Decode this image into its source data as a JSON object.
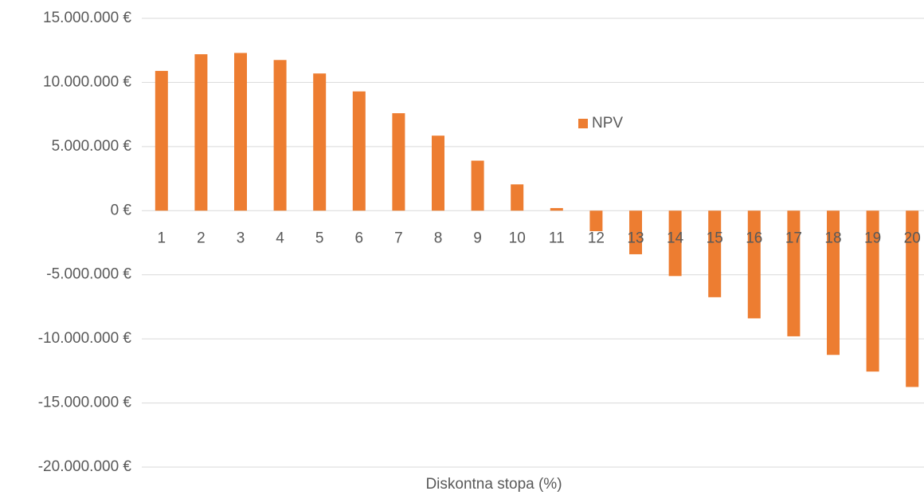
{
  "chart_data": {
    "type": "bar",
    "x_label": "Diskontna stopa (%)",
    "categories": [
      "1",
      "2",
      "3",
      "4",
      "5",
      "6",
      "7",
      "8",
      "9",
      "10",
      "11",
      "12",
      "13",
      "14",
      "15",
      "16",
      "17",
      "18",
      "19",
      "20"
    ],
    "series": [
      {
        "name": "NPV",
        "color": "#ed7d31",
        "values": [
          10900000,
          12200000,
          12300000,
          11750000,
          10700000,
          9300000,
          7600000,
          5850000,
          3900000,
          2050000,
          200000,
          -1600000,
          -3400000,
          -5100000,
          -6750000,
          -8400000,
          -9800000,
          -11250000,
          -12550000,
          -13750000
        ]
      }
    ],
    "ylim": [
      -20000000,
      15000000
    ],
    "yticks": [
      {
        "value": -20000000,
        "label": "-20.000.000 €"
      },
      {
        "value": -15000000,
        "label": "-15.000.000 €"
      },
      {
        "value": -10000000,
        "label": "-10.000.000 €"
      },
      {
        "value": -5000000,
        "label": "-5.000.000 €"
      },
      {
        "value": 0,
        "label": "0 €"
      },
      {
        "value": 5000000,
        "label": "5.000.000 €"
      },
      {
        "value": 10000000,
        "label": "10.000.000 €"
      },
      {
        "value": 15000000,
        "label": "15.000.000 €"
      }
    ],
    "grid": true,
    "legend": "top-center"
  }
}
